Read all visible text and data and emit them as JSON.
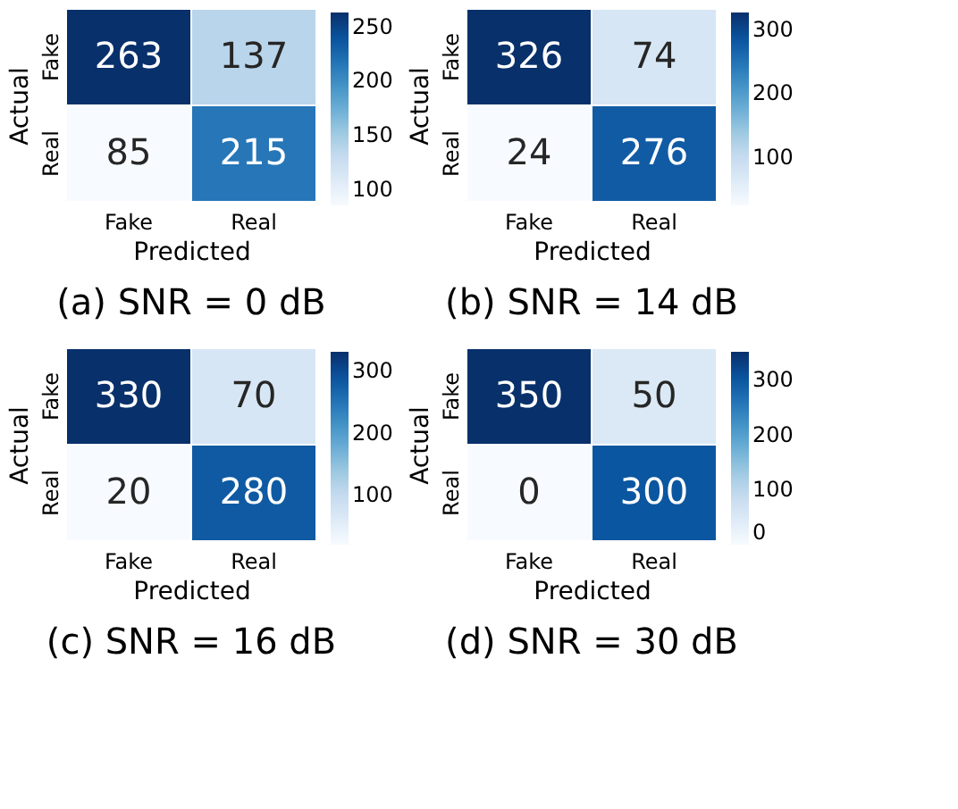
{
  "chart_data": [
    {
      "type": "heatmap",
      "title": "(a) SNR = 0 dB",
      "xlabel": "Predicted",
      "ylabel": "Actual",
      "categories": [
        "Fake",
        "Real"
      ],
      "y_categories": [
        "Fake",
        "Real"
      ],
      "cells": [
        [
          263,
          137
        ],
        [
          85,
          215
        ]
      ],
      "data_labels": true,
      "clim": [
        85,
        263
      ],
      "cticks": [
        100,
        150,
        200,
        250
      ]
    },
    {
      "type": "heatmap",
      "title": "(b) SNR = 14 dB",
      "xlabel": "Predicted",
      "ylabel": "Actual",
      "categories": [
        "Fake",
        "Real"
      ],
      "y_categories": [
        "Fake",
        "Real"
      ],
      "cells": [
        [
          326,
          74
        ],
        [
          24,
          276
        ]
      ],
      "data_labels": true,
      "clim": [
        24,
        326
      ],
      "cticks": [
        100,
        200,
        300
      ]
    },
    {
      "type": "heatmap",
      "title": "(c) SNR = 16 dB",
      "xlabel": "Predicted",
      "ylabel": "Actual",
      "categories": [
        "Fake",
        "Real"
      ],
      "y_categories": [
        "Fake",
        "Real"
      ],
      "cells": [
        [
          330,
          70
        ],
        [
          20,
          280
        ]
      ],
      "data_labels": true,
      "clim": [
        20,
        330
      ],
      "cticks": [
        100,
        200,
        300
      ]
    },
    {
      "type": "heatmap",
      "title": "(d) SNR = 30 dB",
      "xlabel": "Predicted",
      "ylabel": "Actual",
      "categories": [
        "Fake",
        "Real"
      ],
      "y_categories": [
        "Fake",
        "Real"
      ],
      "cells": [
        [
          350,
          50
        ],
        [
          0,
          300
        ]
      ],
      "data_labels": true,
      "clim": [
        0,
        350
      ],
      "cticks": [
        0,
        100,
        200,
        300
      ]
    }
  ]
}
